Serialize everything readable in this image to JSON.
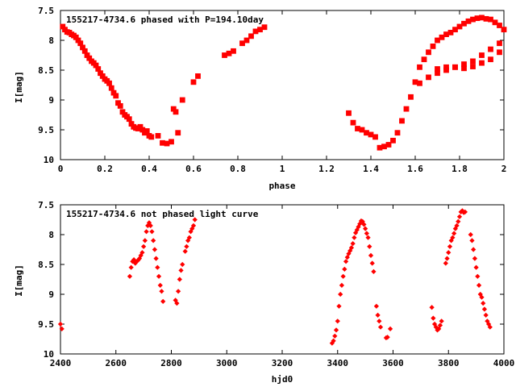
{
  "chart_data": [
    {
      "type": "scatter",
      "title": "155217-4734.6 phased with P=194.10day",
      "xlabel": "phase",
      "ylabel": "I[mag]",
      "xlim": [
        0,
        2
      ],
      "ylim": [
        10,
        7.5
      ],
      "y_inverted": true,
      "xticks": [
        "0",
        "0.2",
        "0.4",
        "0.6",
        "0.8",
        "1",
        "1.2",
        "1.4",
        "1.6",
        "1.8",
        "2"
      ],
      "yticks": [
        "7.5",
        "8",
        "8.5",
        "9",
        "9.5",
        "10"
      ],
      "marker_color": "#ff0000",
      "series": [
        {
          "x": [
            0.01,
            0.02,
            0.03,
            0.04,
            0.05,
            0.06,
            0.07,
            0.08,
            0.09,
            0.1,
            0.11,
            0.12,
            0.13,
            0.14,
            0.15,
            0.16,
            0.17,
            0.18,
            0.19,
            0.2,
            0.21,
            0.22,
            0.23,
            0.24,
            0.25,
            0.26,
            0.27,
            0.28,
            0.29,
            0.3,
            0.31,
            0.32,
            0.33,
            0.34,
            0.35,
            0.36,
            0.37,
            0.38,
            0.39,
            0.4,
            0.41,
            0.44,
            0.46,
            0.48,
            0.5,
            0.51,
            0.52,
            0.53,
            0.55,
            0.6,
            0.62,
            0.74,
            0.76,
            0.78,
            0.82,
            0.84,
            0.86,
            0.88,
            0.9,
            0.92,
            1.3,
            1.32,
            1.34,
            1.36,
            1.38,
            1.4,
            1.42,
            1.44,
            1.46,
            1.48,
            1.5,
            1.52,
            1.54,
            1.56,
            1.58,
            1.6,
            1.62,
            1.64,
            1.66,
            1.68,
            1.7,
            1.72,
            1.74,
            1.76,
            1.78,
            1.8,
            1.82,
            1.84,
            1.86,
            1.88,
            1.9,
            1.92,
            1.94,
            1.96,
            1.98,
            2.0,
            1.62,
            1.66,
            1.7,
            1.74,
            1.78,
            1.82,
            1.86,
            1.9,
            1.94,
            1.98,
            1.7,
            1.74,
            1.78,
            1.82,
            1.86,
            1.9,
            1.94,
            1.98
          ],
          "y": [
            7.77,
            7.82,
            7.86,
            7.87,
            7.9,
            7.92,
            7.95,
            8.0,
            8.05,
            8.12,
            8.18,
            8.25,
            8.3,
            8.35,
            8.38,
            8.42,
            8.48,
            8.55,
            8.6,
            8.65,
            8.68,
            8.72,
            8.8,
            8.88,
            8.93,
            9.05,
            9.1,
            9.2,
            9.25,
            9.28,
            9.32,
            9.4,
            9.45,
            9.47,
            9.48,
            9.45,
            9.5,
            9.55,
            9.52,
            9.6,
            9.62,
            9.6,
            9.72,
            9.73,
            9.7,
            9.15,
            9.2,
            9.55,
            9.0,
            8.7,
            8.6,
            8.25,
            8.22,
            8.18,
            8.05,
            8.0,
            7.93,
            7.85,
            7.82,
            7.78,
            9.22,
            9.38,
            9.48,
            9.5,
            9.55,
            9.58,
            9.62,
            9.8,
            9.78,
            9.75,
            9.68,
            9.55,
            9.35,
            9.15,
            8.95,
            8.7,
            8.45,
            8.32,
            8.2,
            8.1,
            8.0,
            7.95,
            7.9,
            7.87,
            7.82,
            7.77,
            7.72,
            7.68,
            7.65,
            7.63,
            7.62,
            7.64,
            7.65,
            7.7,
            7.75,
            7.82,
            8.72,
            8.62,
            8.55,
            8.5,
            8.45,
            8.4,
            8.35,
            8.25,
            8.15,
            8.05,
            8.48,
            8.45,
            8.45,
            8.47,
            8.44,
            8.38,
            8.32,
            8.2
          ]
        }
      ]
    },
    {
      "type": "scatter",
      "title": "155217-4734.6 not phased light curve",
      "xlabel": "hjd0",
      "ylabel": "I[mag]",
      "xlim": [
        2400,
        4000
      ],
      "ylim": [
        10,
        7.5
      ],
      "y_inverted": true,
      "xticks": [
        "2400",
        "2600",
        "2800",
        "3000",
        "3200",
        "3400",
        "3600",
        "3800",
        "4000"
      ],
      "yticks": [
        "7.5",
        "8",
        "8.5",
        "9",
        "9.5",
        "10"
      ],
      "marker_color": "#ff0000",
      "series": [
        {
          "x": [
            2400,
            2405,
            2650,
            2655,
            2660,
            2665,
            2670,
            2675,
            2680,
            2685,
            2690,
            2695,
            2700,
            2705,
            2710,
            2715,
            2720,
            2725,
            2730,
            2735,
            2740,
            2745,
            2750,
            2755,
            2760,
            2765,
            2770,
            2815,
            2820,
            2825,
            2830,
            2835,
            2840,
            2850,
            2855,
            2860,
            2865,
            2870,
            2875,
            2880,
            2885,
            3380,
            3385,
            3390,
            3395,
            3400,
            3405,
            3410,
            3415,
            3420,
            3425,
            3430,
            3435,
            3440,
            3445,
            3450,
            3455,
            3460,
            3465,
            3470,
            3475,
            3480,
            3485,
            3490,
            3495,
            3500,
            3505,
            3510,
            3515,
            3520,
            3525,
            3530,
            3540,
            3545,
            3550,
            3555,
            3575,
            3580,
            3590,
            3740,
            3745,
            3750,
            3755,
            3760,
            3765,
            3770,
            3775,
            3790,
            3795,
            3800,
            3805,
            3810,
            3815,
            3820,
            3825,
            3830,
            3835,
            3840,
            3845,
            3850,
            3855,
            3860,
            3880,
            3885,
            3890,
            3895,
            3900,
            3905,
            3910,
            3915,
            3920,
            3925,
            3930,
            3935,
            3940,
            3945,
            3950
          ],
          "y": [
            9.5,
            9.58,
            8.7,
            8.55,
            8.45,
            8.42,
            8.48,
            8.45,
            8.43,
            8.4,
            8.35,
            8.3,
            8.2,
            8.1,
            7.95,
            7.85,
            7.8,
            7.85,
            7.95,
            8.1,
            8.25,
            8.4,
            8.55,
            8.7,
            8.85,
            8.95,
            9.12,
            9.1,
            9.15,
            8.95,
            8.75,
            8.6,
            8.5,
            8.28,
            8.2,
            8.1,
            8.05,
            7.95,
            7.9,
            7.85,
            7.75,
            9.82,
            9.78,
            9.7,
            9.6,
            9.45,
            9.2,
            9.0,
            8.85,
            8.7,
            8.58,
            8.45,
            8.38,
            8.32,
            8.27,
            8.22,
            8.15,
            8.05,
            7.97,
            7.92,
            7.87,
            7.82,
            7.77,
            7.78,
            7.83,
            7.9,
            7.98,
            8.05,
            8.2,
            8.35,
            8.48,
            8.62,
            9.2,
            9.35,
            9.45,
            9.55,
            9.73,
            9.72,
            9.58,
            9.22,
            9.4,
            9.5,
            9.55,
            9.6,
            9.58,
            9.52,
            9.45,
            8.48,
            8.4,
            8.3,
            8.2,
            8.1,
            8.05,
            7.98,
            7.9,
            7.85,
            7.78,
            7.7,
            7.62,
            7.6,
            7.63,
            7.62,
            8.0,
            8.1,
            8.25,
            8.4,
            8.55,
            8.7,
            8.85,
            9.0,
            9.05,
            9.15,
            9.25,
            9.35,
            9.45,
            9.5,
            9.55
          ]
        }
      ]
    }
  ]
}
